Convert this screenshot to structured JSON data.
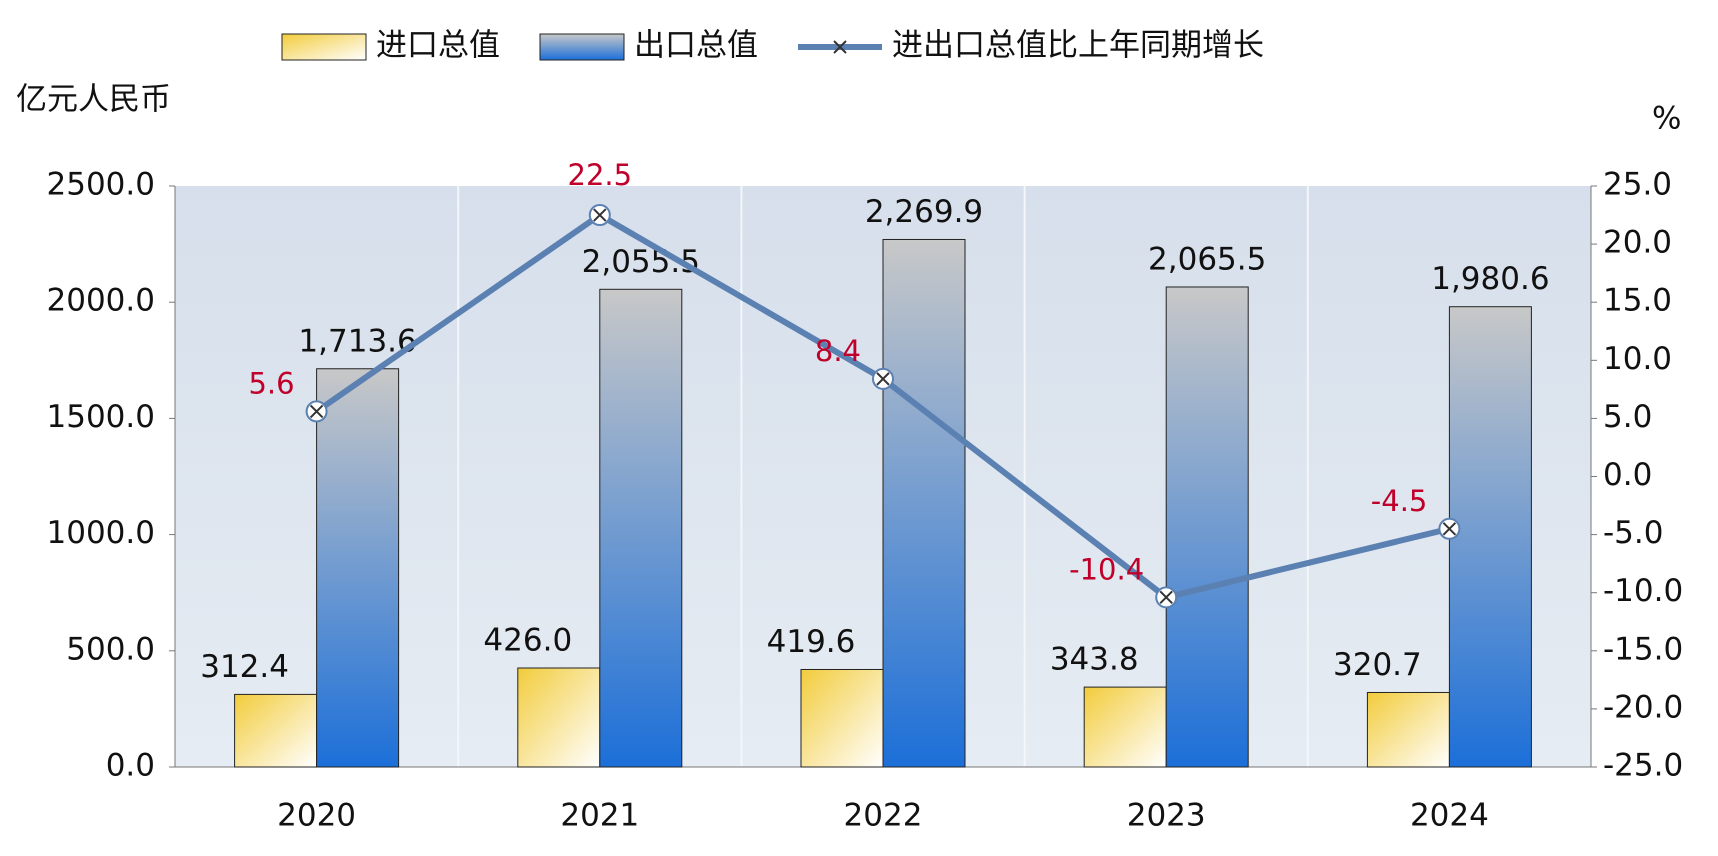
{
  "chart_data": {
    "type": "bar_line",
    "y_axis_label": "亿元人民币",
    "y2_axis_label": "%",
    "categories": [
      "2020",
      "2021",
      "2022",
      "2023",
      "2024"
    ],
    "series": [
      {
        "name": "进口总值",
        "type": "bar",
        "color": "#f2cc3c",
        "values": [
          312.4,
          426.0,
          419.6,
          343.8,
          320.7
        ],
        "value_labels": [
          "312.4",
          "426.0",
          "419.6",
          "343.8",
          "320.7"
        ]
      },
      {
        "name": "出口总值",
        "type": "bar",
        "color": "#1c6fd8",
        "values": [
          1713.6,
          2055.5,
          2269.9,
          2065.5,
          1980.6
        ],
        "value_labels": [
          "1,713.6",
          "2,055.5",
          "2,269.9",
          "2,065.5",
          "1,980.6"
        ]
      },
      {
        "name": "进出口总值比上年同期增长",
        "type": "line",
        "axis": "y2",
        "color": "#5b80b2",
        "values": [
          5.6,
          22.5,
          8.4,
          -10.4,
          -4.5
        ]
      }
    ],
    "ylim": [
      0,
      2500
    ],
    "yticks": [
      {
        "value": 0,
        "label": "0.0"
      },
      {
        "value": 500,
        "label": "500.0"
      },
      {
        "value": 1000,
        "label": "1000.0"
      },
      {
        "value": 1500,
        "label": "1500.0"
      },
      {
        "value": 2000,
        "label": "2000.0"
      },
      {
        "value": 2500,
        "label": "2500.0"
      }
    ],
    "y2lim": [
      -25,
      25
    ],
    "y2ticks": [
      {
        "value": -25,
        "label": "-25.0"
      },
      {
        "value": -20,
        "label": "-20.0"
      },
      {
        "value": -15,
        "label": "-15.0"
      },
      {
        "value": -10,
        "label": "-10.0"
      },
      {
        "value": -5,
        "label": "-5.0"
      },
      {
        "value": 0,
        "label": "0.0"
      },
      {
        "value": 5,
        "label": "5.0"
      },
      {
        "value": 10,
        "label": "10.0"
      },
      {
        "value": 15,
        "label": "15.0"
      },
      {
        "value": 20,
        "label": "20.0"
      },
      {
        "value": 25,
        "label": "25.0"
      }
    ]
  }
}
